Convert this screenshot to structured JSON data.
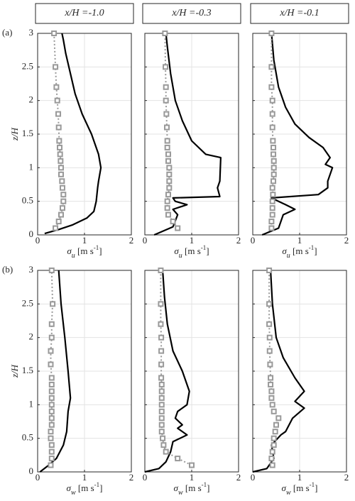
{
  "chart_data": [
    {
      "type": "line",
      "title": "x/H =-1.0",
      "label": "(a)",
      "ylabel": "z/H",
      "xlabel": [
        "σ",
        "u",
        " [m s",
        "-1",
        "]"
      ],
      "xlim": [
        0,
        2
      ],
      "xticks": [
        0,
        1,
        2
      ],
      "ylim": [
        0,
        3
      ],
      "yticks": [
        0,
        0.5,
        1,
        1.5,
        2,
        2.5,
        3
      ],
      "show_yticklabels": true,
      "grid": true,
      "series": [
        {
          "color": "#000000",
          "style": "solid",
          "values": [
            0.15,
            0.45,
            0.75,
            1.05,
            1.2,
            1.25,
            1.28,
            1.3,
            1.35,
            1.3,
            1.15,
            0.95,
            0.8,
            0.7,
            0.6,
            0.55,
            0.52
          ],
          "y": [
            0.02,
            0.08,
            0.15,
            0.25,
            0.35,
            0.5,
            0.7,
            0.8,
            1.0,
            1.2,
            1.5,
            1.8,
            2.1,
            2.4,
            2.7,
            2.9,
            3.0
          ]
        },
        {
          "color": "#999999",
          "style": "dotted-square",
          "values": [
            0.38,
            0.45,
            0.5,
            0.53,
            0.55,
            0.55,
            0.53,
            0.52,
            0.5,
            0.5,
            0.49,
            0.48,
            0.47,
            0.46,
            0.45,
            0.44,
            0.42,
            0.4,
            0.38,
            0.35
          ],
          "y": [
            0.1,
            0.2,
            0.3,
            0.4,
            0.5,
            0.6,
            0.7,
            0.8,
            0.9,
            1.0,
            1.1,
            1.2,
            1.3,
            1.4,
            1.6,
            1.8,
            2.0,
            2.2,
            2.5,
            3.0
          ]
        }
      ]
    },
    {
      "type": "line",
      "title": "x/H =-0.3",
      "xlabel": [
        "σ",
        "u",
        " [m s",
        "-1",
        "]"
      ],
      "xlim": [
        0,
        2
      ],
      "xticks": [
        0,
        1,
        2
      ],
      "ylim": [
        0,
        3
      ],
      "yticks": [
        0,
        0.5,
        1,
        1.5,
        2,
        2.5,
        3
      ],
      "show_yticklabels": false,
      "grid": true,
      "series": [
        {
          "color": "#000000",
          "style": "solid",
          "values": [
            0.2,
            0.6,
            0.7,
            0.6,
            0.9,
            0.65,
            0.6,
            1.6,
            1.55,
            1.6,
            1.62,
            1.3,
            1.0,
            0.8,
            0.65,
            0.55,
            0.48,
            0.45
          ],
          "y": [
            0.0,
            0.12,
            0.3,
            0.38,
            0.45,
            0.5,
            0.55,
            0.57,
            0.7,
            0.8,
            1.15,
            1.2,
            1.4,
            1.7,
            2.0,
            2.4,
            2.8,
            3.0
          ]
        },
        {
          "color": "#999999",
          "style": "dotted-square",
          "values": [
            0.7,
            0.6,
            0.5,
            0.48,
            0.48,
            0.5,
            0.52,
            0.52,
            0.52,
            0.52,
            0.5,
            0.5,
            0.48,
            0.48,
            0.47,
            0.46,
            0.45,
            0.45,
            0.44,
            0.43
          ],
          "y": [
            0.1,
            0.2,
            0.3,
            0.4,
            0.5,
            0.6,
            0.7,
            0.8,
            0.9,
            1.0,
            1.1,
            1.2,
            1.3,
            1.4,
            1.6,
            1.8,
            2.0,
            2.2,
            2.5,
            3.0
          ]
        }
      ]
    },
    {
      "type": "line",
      "title": "x/H =-0.1",
      "xlabel": [
        "σ",
        "u",
        " [m s",
        "-1",
        "]"
      ],
      "xlim": [
        0,
        2
      ],
      "xticks": [
        0,
        1,
        2
      ],
      "ylim": [
        0,
        3
      ],
      "yticks": [
        0,
        0.5,
        1,
        1.5,
        2,
        2.5,
        3
      ],
      "show_yticklabels": false,
      "grid": true,
      "series": [
        {
          "color": "#000000",
          "style": "solid",
          "values": [
            0.2,
            0.55,
            0.65,
            0.9,
            0.7,
            0.55,
            0.4,
            1.4,
            1.6,
            1.6,
            1.7,
            1.55,
            1.65,
            1.5,
            1.2,
            0.9,
            0.7,
            0.55,
            0.45,
            0.4
          ],
          "y": [
            0.0,
            0.1,
            0.3,
            0.38,
            0.45,
            0.5,
            0.55,
            0.6,
            0.7,
            0.8,
            1.0,
            1.05,
            1.15,
            1.3,
            1.45,
            1.65,
            1.9,
            2.2,
            2.6,
            3.0
          ]
        },
        {
          "color": "#999999",
          "style": "dotted-square",
          "values": [
            0.4,
            0.4,
            0.42,
            0.42,
            0.42,
            0.43,
            0.42,
            0.44,
            0.45,
            0.45,
            0.45,
            0.44,
            0.44,
            0.43,
            0.42,
            0.42,
            0.42,
            0.4,
            0.4,
            0.4
          ],
          "y": [
            0.1,
            0.2,
            0.3,
            0.4,
            0.5,
            0.6,
            0.7,
            0.8,
            0.9,
            1.0,
            1.1,
            1.2,
            1.3,
            1.4,
            1.6,
            1.8,
            2.0,
            2.2,
            2.5,
            3.0
          ]
        }
      ]
    },
    {
      "type": "line",
      "label": "(b)",
      "ylabel": "z/H",
      "xlabel": [
        "σ",
        "w",
        " [m s",
        "-1",
        "]"
      ],
      "xlim": [
        0,
        2
      ],
      "xticks": [
        0,
        1,
        2
      ],
      "ylim": [
        0,
        3
      ],
      "yticks": [
        0,
        0.5,
        1,
        1.5,
        2,
        2.5,
        3
      ],
      "show_yticklabels": true,
      "grid": true,
      "series": [
        {
          "color": "#000000",
          "style": "solid",
          "values": [
            0.05,
            0.2,
            0.4,
            0.55,
            0.62,
            0.65,
            0.7,
            0.65,
            0.58,
            0.5,
            0.45
          ],
          "y": [
            0.0,
            0.08,
            0.2,
            0.4,
            0.6,
            0.9,
            1.1,
            1.5,
            2.0,
            2.5,
            3.0
          ]
        },
        {
          "color": "#999999",
          "style": "dotted-square",
          "values": [
            0.28,
            0.3,
            0.3,
            0.3,
            0.28,
            0.28,
            0.3,
            0.3,
            0.3,
            0.3,
            0.3,
            0.3,
            0.3,
            0.3,
            0.28,
            0.28,
            0.3,
            0.3,
            0.32,
            0.3
          ],
          "y": [
            0.1,
            0.2,
            0.3,
            0.4,
            0.5,
            0.6,
            0.7,
            0.8,
            0.9,
            1.0,
            1.1,
            1.2,
            1.3,
            1.4,
            1.6,
            1.8,
            2.0,
            2.2,
            2.5,
            3.0
          ]
        }
      ]
    },
    {
      "type": "line",
      "xlabel": [
        "σ",
        "w",
        " [m s",
        "-1",
        "]"
      ],
      "xlim": [
        0,
        2
      ],
      "xticks": [
        0,
        1,
        2
      ],
      "ylim": [
        0,
        3
      ],
      "yticks": [
        0,
        0.5,
        1,
        1.5,
        2,
        2.5,
        3
      ],
      "show_yticklabels": false,
      "grid": true,
      "series": [
        {
          "color": "#000000",
          "style": "solid",
          "values": [
            0.0,
            0.3,
            0.45,
            0.55,
            0.6,
            0.9,
            0.7,
            0.8,
            0.65,
            0.7,
            0.9,
            0.95,
            0.8,
            0.6,
            0.48,
            0.42,
            0.38
          ],
          "y": [
            0.0,
            0.05,
            0.15,
            0.3,
            0.45,
            0.55,
            0.65,
            0.7,
            0.8,
            0.9,
            1.0,
            1.2,
            1.5,
            1.8,
            2.2,
            2.6,
            3.0
          ]
        },
        {
          "color": "#999999",
          "style": "dotted-square",
          "values": [
            1.0,
            0.7,
            0.45,
            0.4,
            0.38,
            0.36,
            0.36,
            0.36,
            0.36,
            0.36,
            0.36,
            0.36,
            0.36,
            0.35,
            0.35,
            0.35,
            0.35,
            0.34,
            0.34,
            0.34
          ],
          "y": [
            0.1,
            0.2,
            0.3,
            0.4,
            0.5,
            0.6,
            0.7,
            0.8,
            0.9,
            1.0,
            1.1,
            1.2,
            1.3,
            1.4,
            1.6,
            1.8,
            2.0,
            2.2,
            2.5,
            3.0
          ]
        }
      ]
    },
    {
      "type": "line",
      "xlabel": [
        "σ",
        "w",
        " [m s",
        "-1",
        "]"
      ],
      "xlim": [
        0,
        2
      ],
      "xticks": [
        0,
        1,
        2
      ],
      "ylim": [
        0,
        3
      ],
      "yticks": [
        0,
        0.5,
        1,
        1.5,
        2,
        2.5,
        3
      ],
      "show_yticklabels": false,
      "grid": true,
      "series": [
        {
          "color": "#000000",
          "style": "solid",
          "values": [
            0.0,
            0.3,
            0.45,
            0.4,
            0.6,
            0.7,
            0.85,
            1.1,
            0.9,
            1.1,
            0.9,
            0.65,
            0.5,
            0.42,
            0.38
          ],
          "y": [
            0.0,
            0.05,
            0.2,
            0.4,
            0.55,
            0.6,
            0.8,
            0.95,
            1.05,
            1.2,
            1.4,
            1.7,
            2.0,
            2.5,
            3.0
          ]
        },
        {
          "color": "#999999",
          "style": "dotted-square",
          "values": [
            0.42,
            0.4,
            0.42,
            0.45,
            0.45,
            0.48,
            0.5,
            0.55,
            0.45,
            0.42,
            0.4,
            0.4,
            0.38,
            0.38,
            0.37,
            0.36,
            0.36,
            0.35,
            0.35,
            0.35
          ],
          "y": [
            0.1,
            0.2,
            0.3,
            0.4,
            0.5,
            0.6,
            0.7,
            0.8,
            0.9,
            1.0,
            1.1,
            1.2,
            1.3,
            1.4,
            1.6,
            1.8,
            2.0,
            2.2,
            2.5,
            3.0
          ]
        }
      ]
    }
  ]
}
